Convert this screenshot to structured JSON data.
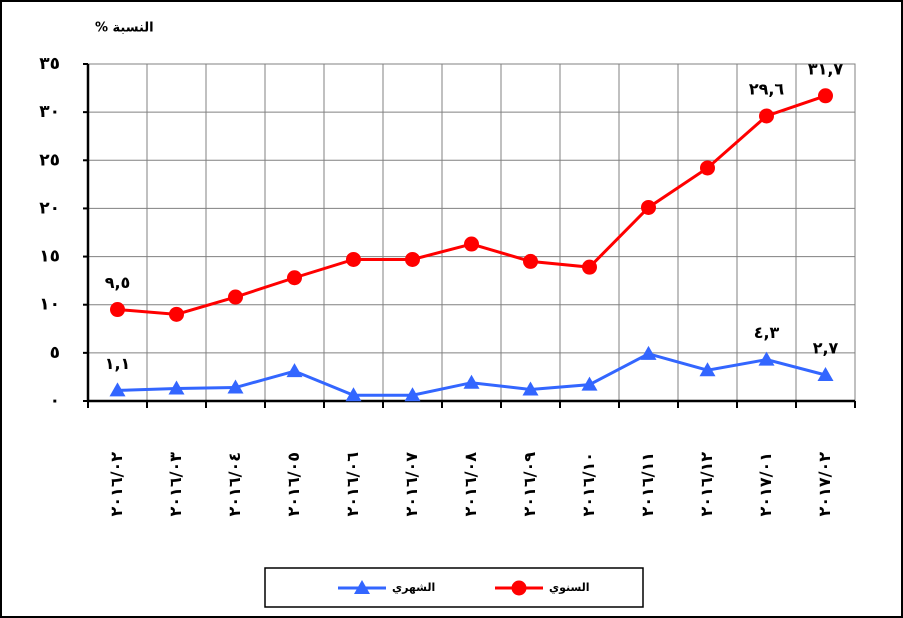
{
  "chart_data": {
    "type": "line",
    "y_label": "النسبة %",
    "categories": [
      "٢٠١٦/٠٢",
      "٢٠١٦/٠٣",
      "٢٠١٦/٠٤",
      "٢٠١٦/٠٥",
      "٢٠١٦/٠٦",
      "٢٠١٦/٠٧",
      "٢٠١٦/٠٨",
      "٢٠١٦/٠٩",
      "٢٠١٦/١٠",
      "٢٠١٦/١١",
      "٢٠١٦/١٢",
      "٢٠١٧/٠١",
      "٢٠١٧/٠٢"
    ],
    "series": [
      {
        "name": "السنوي",
        "color": "#ff0000",
        "marker": "circle",
        "values": [
          9.5,
          9.0,
          10.8,
          12.8,
          14.7,
          14.7,
          16.3,
          14.5,
          13.9,
          20.1,
          24.2,
          29.6,
          31.7
        ],
        "value_labels": [
          "٩,٥",
          null,
          null,
          null,
          null,
          null,
          null,
          null,
          null,
          null,
          null,
          "٢٩,٦",
          "٣١,٧"
        ]
      },
      {
        "name": "الشهري",
        "color": "#3366ff",
        "marker": "triangle",
        "values": [
          1.1,
          1.3,
          1.4,
          3.1,
          0.6,
          0.6,
          1.9,
          1.2,
          1.7,
          4.9,
          3.2,
          4.3,
          2.7
        ],
        "value_labels": [
          "١,١",
          null,
          null,
          null,
          null,
          null,
          null,
          null,
          null,
          null,
          null,
          "٤,٣",
          "٢,٧"
        ]
      }
    ],
    "ylim": [
      0,
      35
    ],
    "yticks": [
      {
        "value": 0,
        "label": "٠"
      },
      {
        "value": 5,
        "label": "٥"
      },
      {
        "value": 10,
        "label": "١٠"
      },
      {
        "value": 15,
        "label": "١٥"
      },
      {
        "value": 20,
        "label": "٢٠"
      },
      {
        "value": 25,
        "label": "٢٥"
      },
      {
        "value": 30,
        "label": "٣٠"
      },
      {
        "value": 35,
        "label": "٣٥"
      }
    ],
    "grid": true
  }
}
